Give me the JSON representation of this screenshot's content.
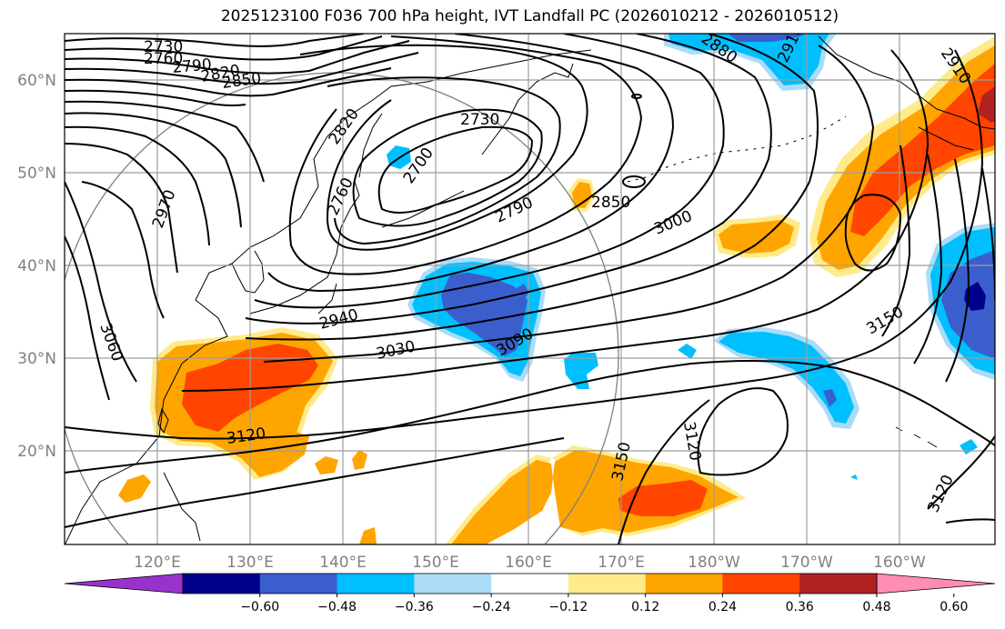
{
  "title": "2025123100 F036 700 hPa height, IVT Landfall PC (2026010212 - 2026010512)",
  "map": {
    "lat_ticks": [
      "60°N",
      "50°N",
      "40°N",
      "30°N",
      "20°N"
    ],
    "lon_ticks": [
      "120°E",
      "130°E",
      "140°E",
      "150°E",
      "160°E",
      "170°E",
      "180°W",
      "170°W",
      "160°W"
    ],
    "contour_labels": [
      "2730",
      "2760",
      "2790",
      "2820",
      "2850",
      "2820",
      "2730",
      "2700",
      "2760",
      "2790",
      "2850",
      "3000",
      "2970",
      "2940",
      "3030",
      "3090",
      "3060",
      "3120",
      "3150",
      "3120",
      "3150",
      "3120",
      "2910",
      "2880",
      "2910"
    ]
  },
  "colorbar": {
    "ticks": [
      "−0.60",
      "−0.48",
      "−0.36",
      "−0.24",
      "−0.12",
      "0.12",
      "0.24",
      "0.36",
      "0.48",
      "0.60"
    ],
    "colors": [
      "#9932cc",
      "#00008b",
      "#3a5fcd",
      "#00bfff",
      "#aadcf8",
      "#ffffff",
      "#ffeb8a",
      "#ffa500",
      "#ff4500",
      "#b22222",
      "#ff8cb4"
    ]
  },
  "colors": {
    "light_blue": "#aadcf8",
    "blue": "#00bfff",
    "royal_blue": "#3a5fcd",
    "yellow": "#ffeb8a",
    "orange": "#ffa500",
    "red_orange": "#ff4500",
    "dark_red": "#b22222"
  }
}
